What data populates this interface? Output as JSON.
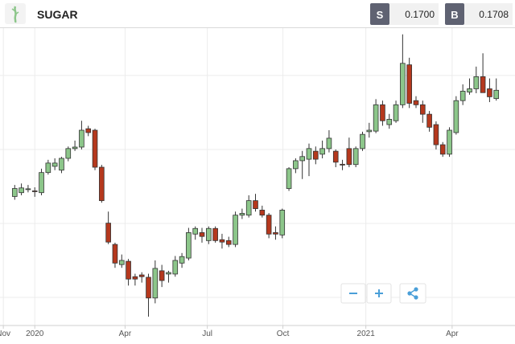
{
  "header": {
    "title": "SUGAR",
    "sell_label": "S",
    "sell_price": "0.1700",
    "buy_label": "B",
    "buy_price": "0.1708"
  },
  "chart_data": {
    "type": "candlestick",
    "up_color": "#8cc68a",
    "down_color": "#b5381d",
    "xlim": [
      -2.2,
      74.8
    ],
    "ylim": [
      0.0905,
      0.191
    ],
    "ygrid": [
      0.1,
      0.125,
      0.15,
      0.175
    ],
    "xticks": [
      {
        "value": -1.7,
        "label": "Nov"
      },
      {
        "value": 3.0,
        "label": "2020"
      },
      {
        "value": 16.5,
        "label": "Apr"
      },
      {
        "value": 28.8,
        "label": "Jul"
      },
      {
        "value": 40.1,
        "label": "Oct"
      },
      {
        "value": 52.5,
        "label": "2021"
      },
      {
        "value": 65.4,
        "label": "Apr"
      }
    ],
    "open": [
      0.1341,
      0.1354,
      0.1365,
      0.136,
      0.1354,
      0.1422,
      0.1443,
      0.143,
      0.147,
      0.1503,
      0.1508,
      0.157,
      0.1565,
      0.144,
      0.1251,
      0.1179,
      0.1111,
      0.1122,
      0.107,
      0.1076,
      0.1068,
      0.0998,
      0.109,
      0.1079,
      0.1079,
      0.1116,
      0.1133,
      0.1214,
      0.1219,
      0.1192,
      0.1233,
      0.1195,
      0.1192,
      0.1179,
      0.1278,
      0.1278,
      0.1327,
      0.1295,
      0.1278,
      0.1219,
      0.1211,
      0.1368,
      0.1435,
      0.1462,
      0.1467,
      0.1494,
      0.1484,
      0.1503,
      0.1494,
      0.145,
      0.1503,
      0.1449,
      0.1503,
      0.156,
      0.1562,
      0.1651,
      0.1584,
      0.1597,
      0.1651,
      0.1786,
      0.1665,
      0.1651,
      0.1619,
      0.1584,
      0.1516,
      0.1484,
      0.1557,
      0.1665,
      0.1694,
      0.1705,
      0.1746,
      0.1705,
      0.1672
    ],
    "high": [
      0.138,
      0.1385,
      0.138,
      0.1372,
      0.1435,
      0.1465,
      0.147,
      0.1475,
      0.151,
      0.153,
      0.1597,
      0.158,
      0.157,
      0.1448,
      0.129,
      0.1185,
      0.1145,
      0.113,
      0.108,
      0.1085,
      0.108,
      0.1125,
      0.111,
      0.109,
      0.114,
      0.115,
      0.1235,
      0.124,
      0.1235,
      0.124,
      0.124,
      0.1215,
      0.1205,
      0.129,
      0.13,
      0.1345,
      0.135,
      0.131,
      0.1285,
      0.124,
      0.13,
      0.144,
      0.147,
      0.1495,
      0.152,
      0.151,
      0.153,
      0.1565,
      0.15,
      0.1465,
      0.154,
      0.151,
      0.156,
      0.159,
      0.167,
      0.1665,
      0.162,
      0.1665,
      0.1889,
      0.181,
      0.168,
      0.1665,
      0.163,
      0.1595,
      0.1525,
      0.1575,
      0.168,
      0.172,
      0.174,
      0.178,
      0.1825,
      0.174,
      0.174
    ],
    "low": [
      0.133,
      0.1345,
      0.1355,
      0.134,
      0.1345,
      0.1415,
      0.143,
      0.142,
      0.146,
      0.1495,
      0.15,
      0.1545,
      0.143,
      0.132,
      0.118,
      0.11,
      0.11,
      0.104,
      0.104,
      0.105,
      0.0935,
      0.098,
      0.1035,
      0.105,
      0.107,
      0.11,
      0.1125,
      0.1195,
      0.1185,
      0.118,
      0.1185,
      0.1165,
      0.117,
      0.117,
      0.1265,
      0.127,
      0.129,
      0.127,
      0.12,
      0.1195,
      0.12,
      0.136,
      0.142,
      0.14,
      0.141,
      0.145,
      0.147,
      0.149,
      0.144,
      0.143,
      0.144,
      0.144,
      0.1495,
      0.154,
      0.1555,
      0.158,
      0.157,
      0.159,
      0.164,
      0.164,
      0.164,
      0.159,
      0.156,
      0.15,
      0.1475,
      0.1475,
      0.155,
      0.165,
      0.1685,
      0.169,
      0.17,
      0.166,
      0.1665
    ],
    "close": [
      0.1368,
      0.137,
      0.1367,
      0.1358,
      0.1422,
      0.1454,
      0.1454,
      0.147,
      0.1503,
      0.1508,
      0.1565,
      0.1557,
      0.144,
      0.1327,
      0.1187,
      0.1116,
      0.1125,
      0.1062,
      0.1062,
      0.107,
      0.0998,
      0.1098,
      0.1057,
      0.1084,
      0.1125,
      0.1138,
      0.1219,
      0.1233,
      0.1206,
      0.1233,
      0.1192,
      0.1187,
      0.1179,
      0.1278,
      0.1284,
      0.1327,
      0.13,
      0.1278,
      0.1214,
      0.1214,
      0.1295,
      0.1435,
      0.1462,
      0.1476,
      0.1503,
      0.1467,
      0.1503,
      0.1538,
      0.1457,
      0.1449,
      0.1449,
      0.1503,
      0.1551,
      0.1565,
      0.1651,
      0.1597,
      0.1602,
      0.1651,
      0.1791,
      0.1656,
      0.1651,
      0.1619,
      0.1575,
      0.1516,
      0.1484,
      0.1565,
      0.1665,
      0.1697,
      0.1705,
      0.1746,
      0.1692,
      0.1678,
      0.17
    ]
  }
}
